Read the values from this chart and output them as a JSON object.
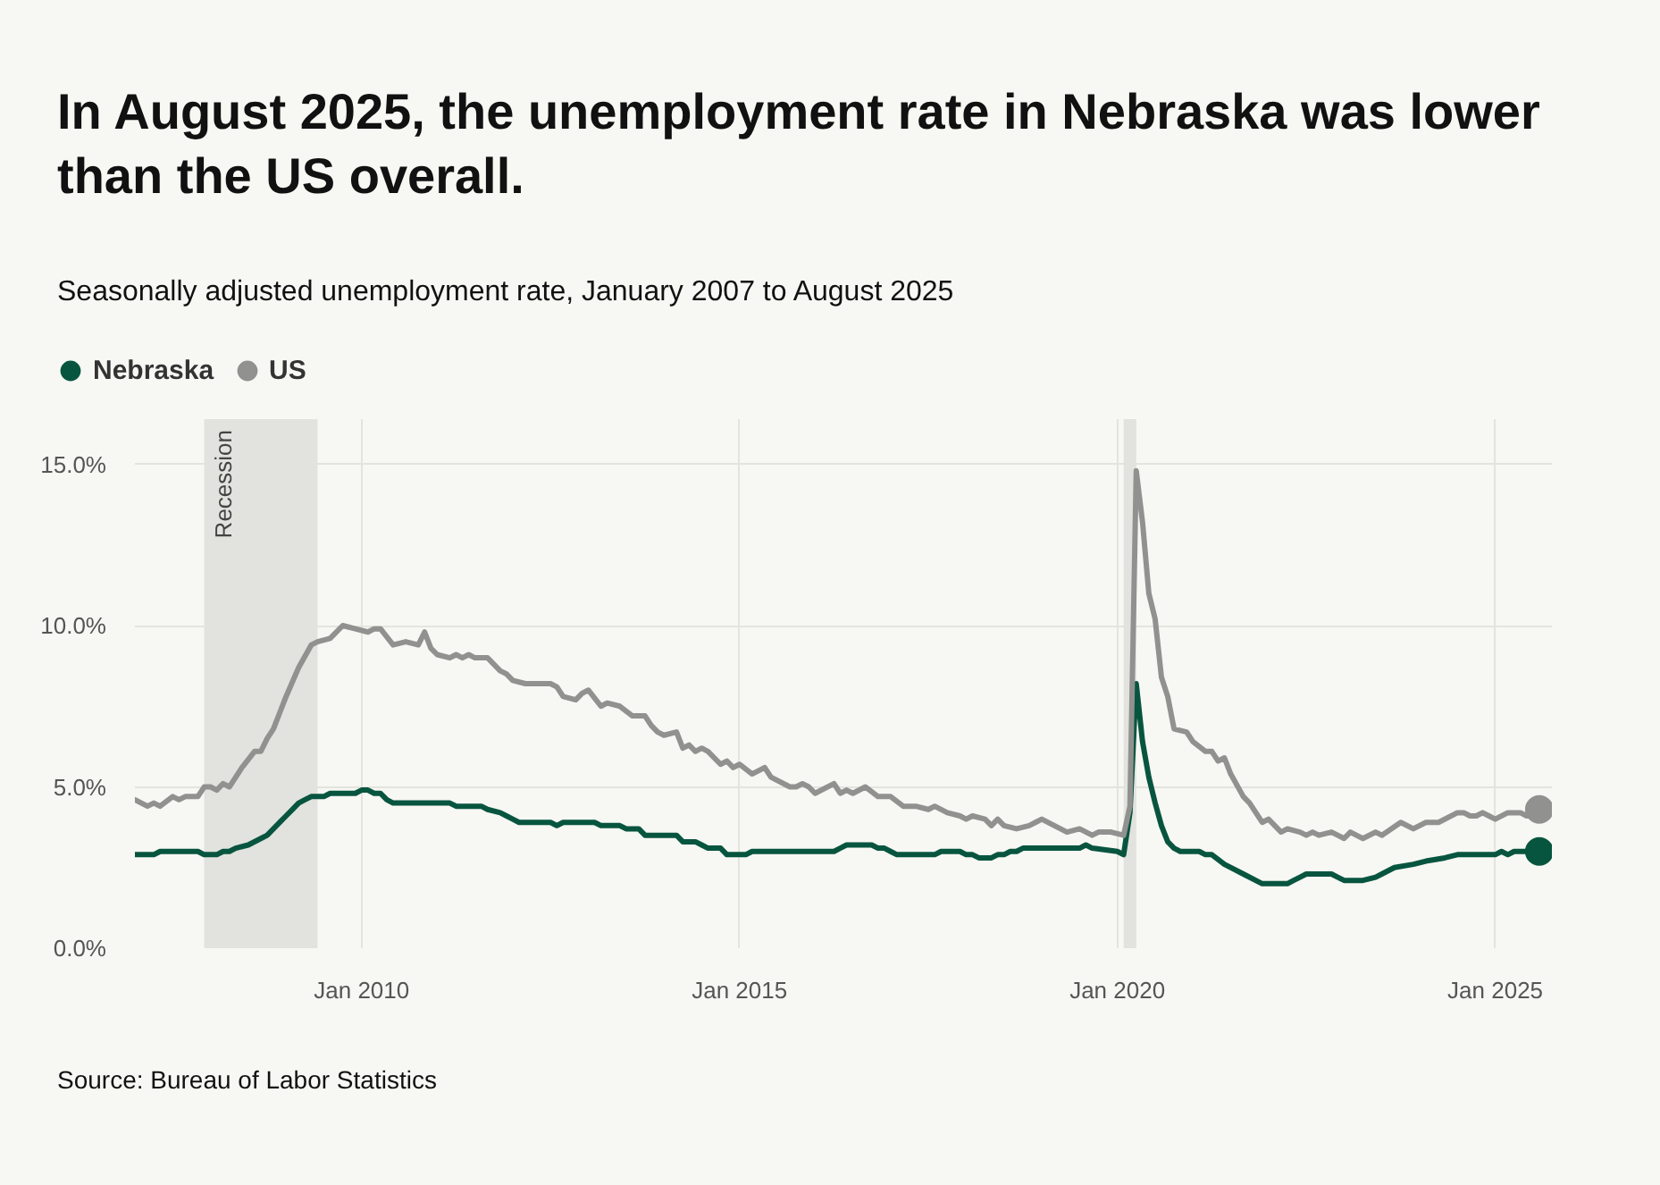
{
  "chart_data": {
    "type": "line",
    "title": "In August 2025, the unemployment rate in Nebraska was lower than the US overall.",
    "subtitle": "Seasonally adjusted unemployment rate, January 2007 to August 2025",
    "annotations": [
      "Source: Bureau of Labor Statistics"
    ],
    "xlim": [
      "2007-01",
      "2025-10"
    ],
    "xticks": [
      {
        "value": "2010-01",
        "label": "Jan 2010"
      },
      {
        "value": "2015-01",
        "label": "Jan 2015"
      },
      {
        "value": "2020-01",
        "label": "Jan 2020"
      },
      {
        "value": "2025-01",
        "label": "Jan 2025"
      }
    ],
    "ylim": [
      0,
      16.4
    ],
    "yticks": [
      {
        "value": 0,
        "label": "0.0%"
      },
      {
        "value": 5,
        "label": "5.0%"
      },
      {
        "value": 10,
        "label": "10.0%"
      },
      {
        "value": 15,
        "label": "15.0%"
      }
    ],
    "grid": true,
    "legend": "top left",
    "line_style": "solid",
    "bands": [
      {
        "axis": "x",
        "from": "2007-12",
        "to": "2009-06",
        "label": "Recession",
        "color": "#e2e2de"
      },
      {
        "axis": "x",
        "from": "2020-02",
        "to": "2020-04",
        "color": "#e2e2de"
      }
    ],
    "series": [
      {
        "name": "Nebraska",
        "color": "#08553f",
        "x": [
          "2007-01",
          "2007-04",
          "2007-05",
          "2007-11",
          "2007-12",
          "2008-02",
          "2008-03",
          "2008-04",
          "2008-05",
          "2008-07",
          "2008-09",
          "2008-10",
          "2008-11",
          "2008-12",
          "2009-01",
          "2009-02",
          "2009-03",
          "2009-04",
          "2009-05",
          "2009-07",
          "2009-08",
          "2009-12",
          "2010-01",
          "2010-02",
          "2010-03",
          "2010-04",
          "2010-05",
          "2010-06",
          "2011-03",
          "2011-04",
          "2011-08",
          "2011-09",
          "2011-11",
          "2011-12",
          "2012-01",
          "2012-02",
          "2012-07",
          "2012-08",
          "2012-09",
          "2013-02",
          "2013-03",
          "2013-06",
          "2013-07",
          "2013-09",
          "2013-10",
          "2014-03",
          "2014-04",
          "2014-06",
          "2014-07",
          "2014-08",
          "2014-10",
          "2014-11",
          "2015-02",
          "2015-03",
          "2016-04",
          "2016-05",
          "2016-06",
          "2016-10",
          "2016-11",
          "2016-12",
          "2017-01",
          "2017-02",
          "2017-08",
          "2017-09",
          "2017-12",
          "2018-01",
          "2018-02",
          "2018-03",
          "2018-05",
          "2018-06",
          "2018-07",
          "2018-08",
          "2018-09",
          "2018-10",
          "2019-07",
          "2019-08",
          "2019-09",
          "2020-01",
          "2020-02",
          "2020-03",
          "2020-04",
          "2020-05",
          "2020-06",
          "2020-07",
          "2020-08",
          "2020-09",
          "2020-10",
          "2020-11",
          "2021-02",
          "2021-03",
          "2021-04",
          "2021-06",
          "2021-09",
          "2021-12",
          "2022-04",
          "2022-05",
          "2022-06",
          "2022-07",
          "2022-11",
          "2022-12",
          "2023-01",
          "2023-04",
          "2023-06",
          "2023-07",
          "2023-09",
          "2023-12",
          "2024-02",
          "2024-05",
          "2024-07",
          "2025-01",
          "2025-02",
          "2025-03",
          "2025-04",
          "2025-08"
        ],
        "values": [
          2.9,
          2.9,
          3.0,
          3.0,
          2.9,
          2.9,
          3.0,
          3.0,
          3.1,
          3.2,
          3.4,
          3.5,
          3.7,
          3.9,
          4.1,
          4.3,
          4.5,
          4.6,
          4.7,
          4.7,
          4.8,
          4.8,
          4.9,
          4.9,
          4.8,
          4.8,
          4.6,
          4.5,
          4.5,
          4.4,
          4.4,
          4.3,
          4.2,
          4.1,
          4.0,
          3.9,
          3.9,
          3.8,
          3.9,
          3.9,
          3.8,
          3.8,
          3.7,
          3.7,
          3.5,
          3.5,
          3.3,
          3.3,
          3.2,
          3.1,
          3.1,
          2.9,
          2.9,
          3.0,
          3.0,
          3.1,
          3.2,
          3.2,
          3.1,
          3.1,
          3.0,
          2.9,
          2.9,
          3.0,
          3.0,
          2.9,
          2.9,
          2.8,
          2.8,
          2.9,
          2.9,
          3.0,
          3.0,
          3.1,
          3.1,
          3.2,
          3.1,
          3.0,
          2.9,
          4.2,
          8.2,
          6.4,
          5.3,
          4.5,
          3.8,
          3.3,
          3.1,
          3.0,
          3.0,
          2.9,
          2.9,
          2.6,
          2.3,
          2.0,
          2.0,
          2.1,
          2.2,
          2.3,
          2.3,
          2.2,
          2.1,
          2.1,
          2.2,
          2.3,
          2.5,
          2.6,
          2.7,
          2.8,
          2.9,
          2.9,
          3.0,
          2.9,
          3.0,
          3.0
        ]
      },
      {
        "name": "US",
        "color": "#919190",
        "x": [
          "2007-01",
          "2007-03",
          "2007-04",
          "2007-05",
          "2007-07",
          "2007-08",
          "2007-09",
          "2007-11",
          "2007-12",
          "2008-01",
          "2008-02",
          "2008-03",
          "2008-04",
          "2008-06",
          "2008-08",
          "2008-09",
          "2008-10",
          "2008-11",
          "2008-12",
          "2009-01",
          "2009-03",
          "2009-05",
          "2009-06",
          "2009-08",
          "2009-10",
          "2009-12",
          "2010-02",
          "2010-03",
          "2010-04",
          "2010-06",
          "2010-08",
          "2010-10",
          "2010-11",
          "2010-12",
          "2011-01",
          "2011-03",
          "2011-04",
          "2011-05",
          "2011-06",
          "2011-07",
          "2011-09",
          "2011-11",
          "2011-12",
          "2012-01",
          "2012-03",
          "2012-07",
          "2012-08",
          "2012-09",
          "2012-11",
          "2012-12",
          "2013-01",
          "2013-03",
          "2013-04",
          "2013-06",
          "2013-08",
          "2013-10",
          "2013-11",
          "2013-12",
          "2014-01",
          "2014-03",
          "2014-04",
          "2014-05",
          "2014-06",
          "2014-07",
          "2014-08",
          "2014-10",
          "2014-11",
          "2014-12",
          "2015-01",
          "2015-03",
          "2015-05",
          "2015-06",
          "2015-09",
          "2015-10",
          "2015-11",
          "2015-12",
          "2016-01",
          "2016-04",
          "2016-05",
          "2016-06",
          "2016-07",
          "2016-09",
          "2016-11",
          "2017-01",
          "2017-03",
          "2017-05",
          "2017-07",
          "2017-08",
          "2017-10",
          "2017-12",
          "2018-01",
          "2018-02",
          "2018-04",
          "2018-05",
          "2018-06",
          "2018-07",
          "2018-09",
          "2018-11",
          "2018-12",
          "2019-01",
          "2019-03",
          "2019-05",
          "2019-07",
          "2019-09",
          "2019-10",
          "2019-12",
          "2020-02",
          "2020-03",
          "2020-04",
          "2020-05",
          "2020-06",
          "2020-07",
          "2020-08",
          "2020-09",
          "2020-10",
          "2020-12",
          "2021-01",
          "2021-03",
          "2021-04",
          "2021-05",
          "2021-06",
          "2021-07",
          "2021-09",
          "2021-10",
          "2021-12",
          "2022-01",
          "2022-03",
          "2022-04",
          "2022-06",
          "2022-07",
          "2022-08",
          "2022-09",
          "2022-11",
          "2022-12",
          "2023-01",
          "2023-02",
          "2023-04",
          "2023-06",
          "2023-07",
          "2023-10",
          "2023-12",
          "2024-02",
          "2024-04",
          "2024-07",
          "2024-08",
          "2024-09",
          "2024-10",
          "2024-11",
          "2024-12",
          "2025-01",
          "2025-03",
          "2025-05",
          "2025-06",
          "2025-07",
          "2025-08"
        ],
        "values": [
          4.6,
          4.4,
          4.5,
          4.4,
          4.7,
          4.6,
          4.7,
          4.7,
          5.0,
          5.0,
          4.9,
          5.1,
          5.0,
          5.6,
          6.1,
          6.1,
          6.5,
          6.8,
          7.3,
          7.8,
          8.7,
          9.4,
          9.5,
          9.6,
          10.0,
          9.9,
          9.8,
          9.9,
          9.9,
          9.4,
          9.5,
          9.4,
          9.8,
          9.3,
          9.1,
          9.0,
          9.1,
          9.0,
          9.1,
          9.0,
          9.0,
          8.6,
          8.5,
          8.3,
          8.2,
          8.2,
          8.1,
          7.8,
          7.7,
          7.9,
          8.0,
          7.5,
          7.6,
          7.5,
          7.2,
          7.2,
          6.9,
          6.7,
          6.6,
          6.7,
          6.2,
          6.3,
          6.1,
          6.2,
          6.1,
          5.7,
          5.8,
          5.6,
          5.7,
          5.4,
          5.6,
          5.3,
          5.0,
          5.0,
          5.1,
          5.0,
          4.8,
          5.1,
          4.8,
          4.9,
          4.8,
          5.0,
          4.7,
          4.7,
          4.4,
          4.4,
          4.3,
          4.4,
          4.2,
          4.1,
          4.0,
          4.1,
          4.0,
          3.8,
          4.0,
          3.8,
          3.7,
          3.8,
          3.9,
          4.0,
          3.8,
          3.6,
          3.7,
          3.5,
          3.6,
          3.6,
          3.5,
          4.4,
          14.8,
          13.2,
          11.0,
          10.2,
          8.4,
          7.8,
          6.8,
          6.7,
          6.4,
          6.1,
          6.1,
          5.8,
          5.9,
          5.4,
          4.7,
          4.5,
          3.9,
          4.0,
          3.6,
          3.7,
          3.6,
          3.5,
          3.6,
          3.5,
          3.6,
          3.5,
          3.4,
          3.6,
          3.4,
          3.6,
          3.5,
          3.9,
          3.7,
          3.9,
          3.9,
          4.2,
          4.2,
          4.1,
          4.1,
          4.2,
          4.1,
          4.0,
          4.2,
          4.2,
          4.1,
          4.2,
          4.3
        ]
      }
    ]
  }
}
